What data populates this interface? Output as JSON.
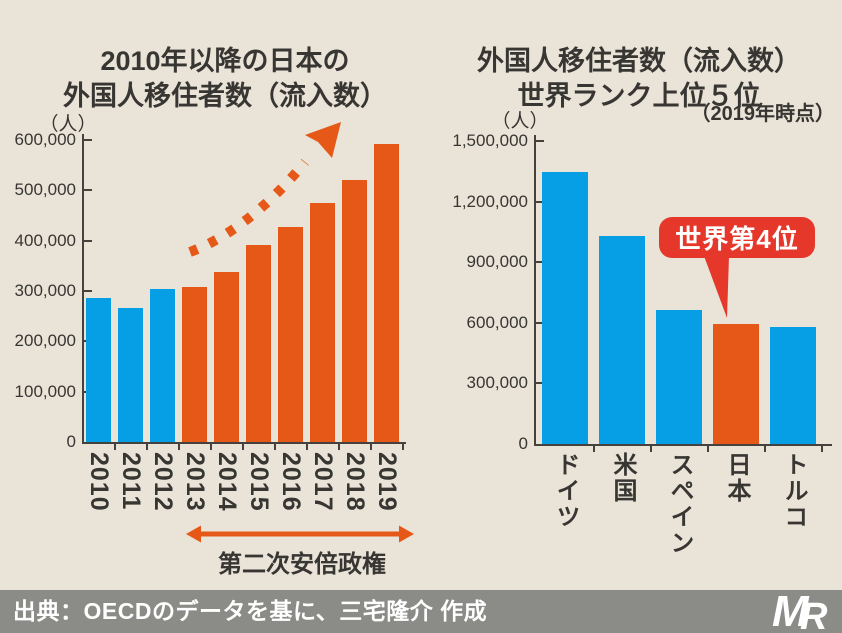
{
  "colors": {
    "background": "#EAE4D8",
    "bar_blue": "#069FE6",
    "bar_orange": "#E65817",
    "badge_red": "#E6372B",
    "text_dark": "#383633",
    "axis": "#45413C",
    "footer_bg": "#8B8B87",
    "footer_text": "#FFFFFF"
  },
  "chart_data": [
    {
      "type": "bar",
      "title_line1": "2010年以降の日本の",
      "title_line2": "外国人移住者数（流入数）",
      "unit_label": "（人）",
      "categories": [
        "2010",
        "2011",
        "2012",
        "2013",
        "2014",
        "2015",
        "2016",
        "2017",
        "2018",
        "2019"
      ],
      "values": [
        287000,
        267000,
        304000,
        307000,
        337000,
        391000,
        428000,
        475000,
        520000,
        592000
      ],
      "highlight_indices": [
        3,
        4,
        5,
        6,
        7,
        8,
        9
      ],
      "ylim": [
        0,
        600000
      ],
      "ytick_values": [
        0,
        100000,
        200000,
        300000,
        400000,
        500000,
        600000
      ],
      "ytick_labels": [
        "0",
        "100,000",
        "200,000",
        "300,000",
        "400,000",
        "500,000",
        "600,000"
      ],
      "legend": "none",
      "grid": false,
      "annotations": {
        "trend_arrow": "dashed-orange-arrow-up-right",
        "period_label": "第二次安倍政権",
        "period_start_category": "2013",
        "period_end_category": "2019"
      }
    },
    {
      "type": "bar",
      "title_line1": "外国人移住者数（流入数）",
      "title_line2": "世界ランク上位５位",
      "subtitle": "（2019年時点）",
      "unit_label": "（人）",
      "categories": [
        "ドイツ",
        "米国",
        "スペイン",
        "日本",
        "トルコ"
      ],
      "values": [
        1345000,
        1030000,
        665000,
        592000,
        578000
      ],
      "highlight_indices": [
        3
      ],
      "ylim": [
        0,
        1500000
      ],
      "ytick_values": [
        0,
        300000,
        600000,
        900000,
        1200000,
        1500000
      ],
      "ytick_labels": [
        "0",
        "300,000",
        "600,000",
        "900,000",
        "1,200,000",
        "1,500,000"
      ],
      "legend": "none",
      "grid": false,
      "annotations": {
        "badge_label": "世界第4位",
        "badge_points_to": "日本"
      }
    }
  ],
  "footer": {
    "source_text": "出典：OECDのデータを基に、三宅隆介 作成",
    "logo": "MR monogram"
  }
}
